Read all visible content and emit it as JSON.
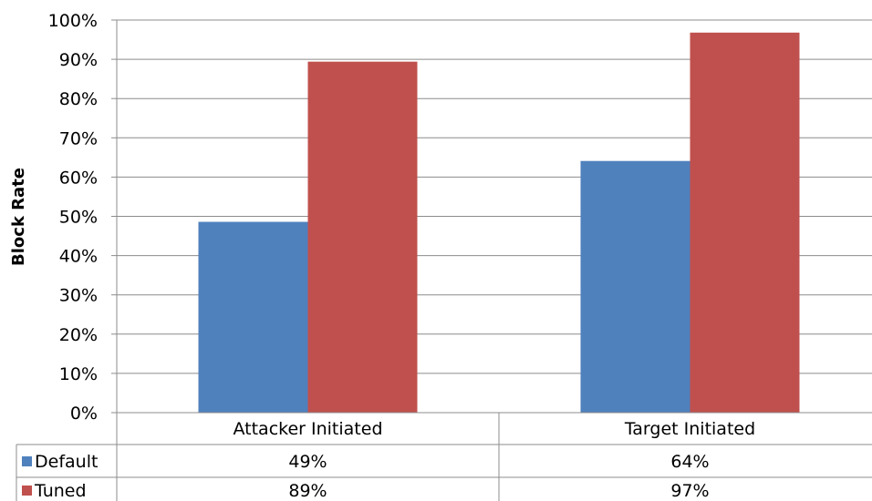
{
  "chart_data": {
    "type": "bar",
    "title": "",
    "xlabel": "",
    "ylabel": "Block Rate",
    "ylim": [
      0,
      100
    ],
    "ytick_step": 10,
    "ytick_suffix": "%",
    "grid": true,
    "legend": "data-table-left",
    "categories": [
      "Attacker Initiated",
      "Target Initiated"
    ],
    "series": [
      {
        "name": "Default",
        "color": "#4f81bd",
        "values": [
          48.6,
          64.1
        ],
        "labels": [
          "49%",
          "64%"
        ]
      },
      {
        "name": "Tuned",
        "color": "#c0504d",
        "values": [
          89.4,
          96.8
        ],
        "labels": [
          "89%",
          "97%"
        ]
      }
    ]
  }
}
